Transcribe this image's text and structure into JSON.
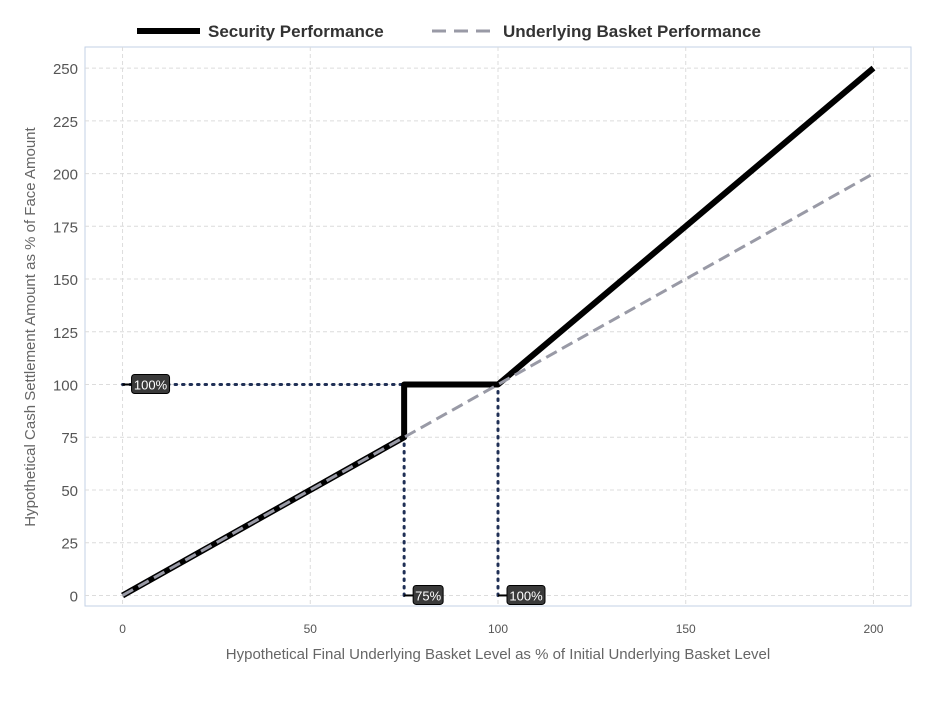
{
  "chart_data": {
    "type": "line",
    "title": "",
    "xlabel": "Hypothetical Final Underlying Basket Level as % of Initial Underlying Basket Level",
    "ylabel": "Hypothetical Cash Settlement Amount as % of Face Amount",
    "xlim": [
      -10,
      210
    ],
    "ylim": [
      -5,
      260
    ],
    "xticks": [
      0,
      50,
      100,
      150,
      200
    ],
    "yticks": [
      0,
      25,
      50,
      75,
      100,
      125,
      150,
      175,
      200,
      225,
      250
    ],
    "grid": true,
    "legend_position": "top-center",
    "series": [
      {
        "name": "Security Performance",
        "color": "#000000",
        "style": "solid",
        "points": [
          [
            0,
            0
          ],
          [
            75,
            75
          ],
          [
            75,
            100
          ],
          [
            100,
            100
          ],
          [
            200,
            250
          ]
        ]
      },
      {
        "name": "Underlying Basket Performance",
        "color": "#999aa6",
        "style": "dashed",
        "points": [
          [
            0,
            0
          ],
          [
            200,
            200
          ]
        ]
      }
    ],
    "reference_lines": [
      {
        "points": [
          [
            0,
            100
          ],
          [
            100,
            100
          ]
        ],
        "style": "dotted",
        "color": "#1f2f55"
      },
      {
        "points": [
          [
            75,
            0
          ],
          [
            75,
            100
          ]
        ],
        "style": "dotted",
        "color": "#1f2f55"
      },
      {
        "points": [
          [
            100,
            0
          ],
          [
            100,
            100
          ]
        ],
        "style": "dotted",
        "color": "#1f2f55"
      }
    ],
    "annotations": [
      {
        "text": "100%",
        "x": 0,
        "y": 100
      },
      {
        "text": "75%",
        "x": 75,
        "y": 0
      },
      {
        "text": "100%",
        "x": 100,
        "y": 0
      }
    ]
  }
}
